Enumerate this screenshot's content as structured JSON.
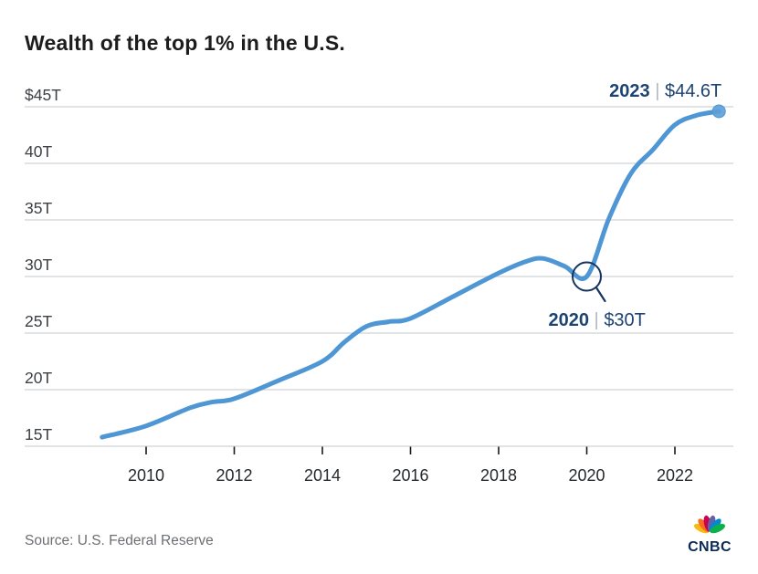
{
  "header": {
    "title": "Wealth of the top 1% in the U.S."
  },
  "chart_data": {
    "type": "line",
    "title": "Wealth of the top 1% in the U.S.",
    "unit": "trillions of USD",
    "grid": true,
    "legend": "none",
    "ylim": [
      15,
      45
    ],
    "xlim": [
      2009,
      2023
    ],
    "y_ticks": [
      {
        "value": 45,
        "label": "$45T"
      },
      {
        "value": 40,
        "label": "40T"
      },
      {
        "value": 35,
        "label": "35T"
      },
      {
        "value": 30,
        "label": "30T"
      },
      {
        "value": 25,
        "label": "25T"
      },
      {
        "value": 20,
        "label": "20T"
      },
      {
        "value": 15,
        "label": "15T"
      }
    ],
    "x_ticks": [
      {
        "year": 2010,
        "label": "2010"
      },
      {
        "year": 2012,
        "label": "2012"
      },
      {
        "year": 2014,
        "label": "2014"
      },
      {
        "year": 2016,
        "label": "2016"
      },
      {
        "year": 2018,
        "label": "2018"
      },
      {
        "year": 2020,
        "label": "2020"
      },
      {
        "year": 2022,
        "label": "2022"
      }
    ],
    "series": [
      {
        "name": "Wealth of the top 1%",
        "color": "#4e96d4",
        "end_marker": true,
        "points": [
          [
            2009,
            15.8
          ],
          [
            2010,
            16.8
          ],
          [
            2011,
            18.4
          ],
          [
            2011.5,
            18.9
          ],
          [
            2012,
            19.2
          ],
          [
            2013,
            20.8
          ],
          [
            2014,
            22.5
          ],
          [
            2014.5,
            24.2
          ],
          [
            2015,
            25.6
          ],
          [
            2015.5,
            26.0
          ],
          [
            2016,
            26.3
          ],
          [
            2017,
            28.3
          ],
          [
            2018,
            30.3
          ],
          [
            2018.6,
            31.3
          ],
          [
            2019,
            31.6
          ],
          [
            2019.5,
            30.9
          ],
          [
            2020,
            30.0
          ],
          [
            2020.5,
            35.1
          ],
          [
            2021,
            39.1
          ],
          [
            2021.5,
            41.2
          ],
          [
            2022,
            43.4
          ],
          [
            2022.5,
            44.25
          ],
          [
            2023,
            44.6
          ]
        ]
      }
    ],
    "annotations": [
      {
        "year": 2023,
        "value": 44.6,
        "bold": "2023",
        "sep": "|",
        "text": "$44.6T",
        "circled": false
      },
      {
        "year": 2020,
        "value": 30.0,
        "bold": "2020",
        "sep": "|",
        "text": "$30T",
        "circled": true
      }
    ]
  },
  "footer": {
    "source": "Source: U.S. Federal Reserve",
    "brand": "CNBC"
  },
  "colors": {
    "line_blue": "#4e96d4",
    "end_dot": "#5d9fd8",
    "annotation_navy": "#1d4371",
    "annotation_sep": "#aeb9c4",
    "circle_navy": "#15355e",
    "gridline": "#d8dadb",
    "tick": "#17191c",
    "y_label": "#3d4145",
    "x_label": "#26292c",
    "title": "#1e1c1c",
    "source_text": "#6b6f73",
    "cnbc_navy": "#0a2c55",
    "peacock": [
      "#FCB711",
      "#F37021",
      "#CC004C",
      "#6460AA",
      "#0089D0",
      "#0DB14B"
    ]
  }
}
